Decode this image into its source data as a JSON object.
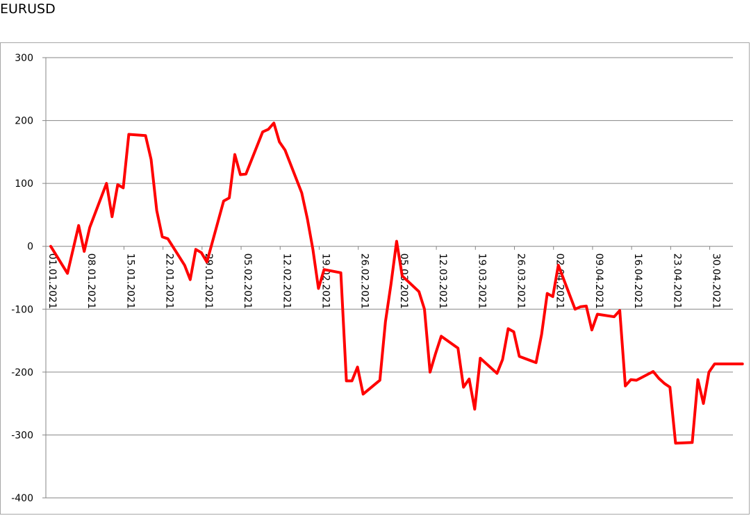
{
  "title": "EURUSD",
  "chart_data": {
    "type": "line",
    "title": "EURUSD",
    "xlabel": "",
    "ylabel": "",
    "ylim": [
      -400,
      300
    ],
    "yticks": [
      300,
      200,
      100,
      0,
      -100,
      -200,
      -300,
      -400
    ],
    "xticks": [
      "01.01.2021",
      "08.01.2021",
      "15.01.2021",
      "22.01.2021",
      "29.01.2021",
      "05.02.2021",
      "12.02.2021",
      "19.02.2021",
      "26.02.2021",
      "05.03.2021",
      "12.03.2021",
      "19.03.2021",
      "26.03.2021",
      "02.04.2021",
      "09.04.2021",
      "16.04.2021",
      "23.04.2021",
      "30.04.2021"
    ],
    "grid": true,
    "legend": "none",
    "line_color": "#ff0000",
    "series": [
      {
        "x": [
          "2021-01-01",
          "2021-01-04",
          "2021-01-06",
          "2021-01-07",
          "2021-01-08",
          "2021-01-11",
          "2021-01-12",
          "2021-01-13",
          "2021-01-14",
          "2021-01-15",
          "2021-01-18",
          "2021-01-19",
          "2021-01-20",
          "2021-01-21",
          "2021-01-22",
          "2021-01-25",
          "2021-01-26",
          "2021-01-27",
          "2021-01-28",
          "2021-01-29",
          "2021-02-01",
          "2021-02-02",
          "2021-02-03",
          "2021-02-04",
          "2021-02-05",
          "2021-02-08",
          "2021-02-09",
          "2021-02-10",
          "2021-02-11",
          "2021-02-12",
          "2021-02-15",
          "2021-02-16",
          "2021-02-17",
          "2021-02-18",
          "2021-02-19",
          "2021-02-22",
          "2021-02-23",
          "2021-02-24",
          "2021-02-25",
          "2021-02-26",
          "2021-03-01",
          "2021-03-02",
          "2021-03-03",
          "2021-03-04",
          "2021-03-05",
          "2021-03-08",
          "2021-03-09",
          "2021-03-10",
          "2021-03-11",
          "2021-03-12",
          "2021-03-15",
          "2021-03-16",
          "2021-03-17",
          "2021-03-18",
          "2021-03-19",
          "2021-03-22",
          "2021-03-23",
          "2021-03-24",
          "2021-03-25",
          "2021-03-26",
          "2021-03-29",
          "2021-03-30",
          "2021-03-31",
          "2021-04-01",
          "2021-04-02",
          "2021-04-05",
          "2021-04-06",
          "2021-04-07",
          "2021-04-08",
          "2021-04-09",
          "2021-04-12",
          "2021-04-13",
          "2021-04-14",
          "2021-04-15",
          "2021-04-16",
          "2021-04-19",
          "2021-04-20",
          "2021-04-21",
          "2021-04-22",
          "2021-04-23",
          "2021-04-26",
          "2021-04-27",
          "2021-04-28",
          "2021-04-29",
          "2021-04-30",
          "2021-05-03",
          "2021-05-04",
          "2021-05-05"
        ],
        "values": [
          0,
          -43,
          33,
          -8,
          30,
          100,
          47,
          98,
          93,
          178,
          176,
          138,
          57,
          15,
          12,
          -30,
          -53,
          -5,
          -10,
          -25,
          72,
          77,
          146,
          114,
          115,
          182,
          186,
          196,
          166,
          153,
          85,
          44,
          -5,
          -67,
          -37,
          -42,
          -214,
          -214,
          -192,
          -235,
          -213,
          -120,
          -60,
          8,
          -47,
          -72,
          -100,
          -200,
          -170,
          -143,
          -162,
          -224,
          -211,
          -259,
          -178,
          -202,
          -180,
          -131,
          -136,
          -175,
          -185,
          -140,
          -75,
          -80,
          -30,
          -100,
          -96,
          -95,
          -133,
          -108,
          -112,
          -102,
          -222,
          -212,
          -213,
          -199,
          -210,
          -218,
          -224,
          -313,
          -312,
          -212,
          -250,
          -200,
          -187,
          -187,
          -187,
          -187
        ]
      }
    ]
  }
}
